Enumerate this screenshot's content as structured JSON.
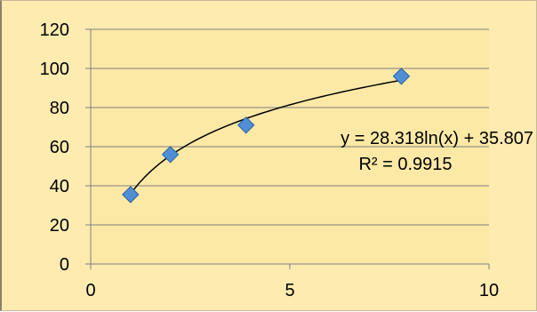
{
  "chart_data": {
    "type": "scatter",
    "x": [
      1,
      2,
      3.9,
      7.8
    ],
    "y": [
      35.5,
      56,
      71,
      96
    ],
    "xlim": [
      0,
      10
    ],
    "ylim": [
      0,
      120
    ],
    "xticks": [
      0,
      5,
      10
    ],
    "yticks": [
      0,
      20,
      40,
      60,
      80,
      100,
      120
    ],
    "xtick_labels": [
      "0",
      "5",
      "10"
    ],
    "ytick_labels": [
      "0",
      "20",
      "40",
      "60",
      "80",
      "100",
      "120"
    ],
    "grid": "horizontal",
    "legend": "none",
    "title": "",
    "xlabel": "",
    "ylabel": "",
    "trendline": {
      "type": "logarithmic",
      "a": 28.318,
      "b": 35.807,
      "equation": "y = 28.318ln(x) + 35.807",
      "r_squared": "R² = 0.9915"
    },
    "colors": {
      "plot_background": "#fde9a6",
      "outer_background": "#fdebb0",
      "marker_fill": "#4f8fd6",
      "marker_stroke": "#2a5f9e",
      "trendline": "#000000",
      "gridline": "#7f7f7f"
    }
  }
}
